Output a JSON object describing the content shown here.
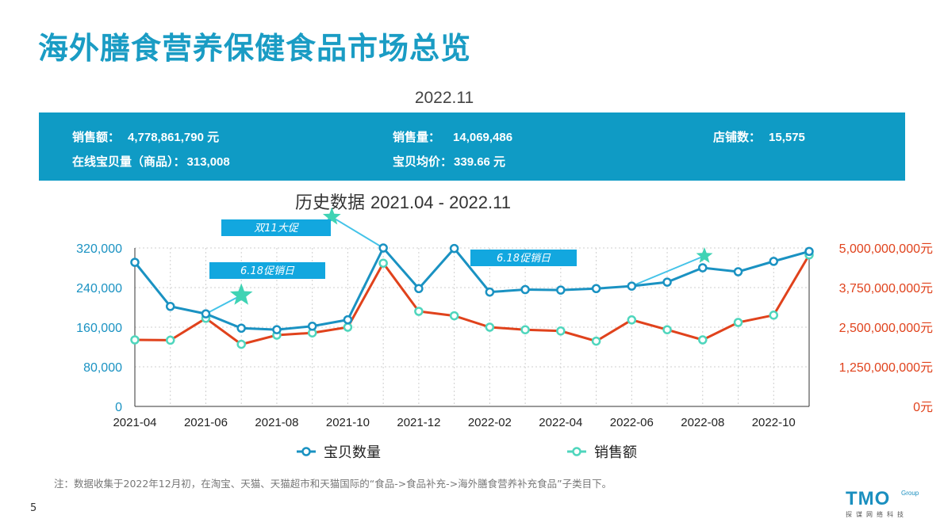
{
  "header": {
    "title": "海外膳食营养保健食品市场总览",
    "period": "2022.11"
  },
  "summary": {
    "sales_label": "销售额：",
    "sales_value": "4,778,861,790 元",
    "volume_label": "销售量：",
    "volume_value": "14,069,486",
    "stores_label": "店铺数：",
    "stores_value": "15,575",
    "items_label": "在线宝贝量（商品）：",
    "items_value": "313,008",
    "avg_label": "宝贝均价：",
    "avg_value": "339.66  元"
  },
  "history": {
    "label": "历史数据",
    "range": "2021.04 - 2022.11"
  },
  "colors": {
    "items_line": "#1a92c2",
    "sales_line": "#e0421c",
    "marker_sales": "#4fd6bd",
    "callout": "#12a7df",
    "star": "#3fd3b4"
  },
  "chart_data": {
    "type": "line",
    "x": [
      "2021-04",
      "2021-05",
      "2021-06",
      "2021-07",
      "2021-08",
      "2021-09",
      "2021-10",
      "2021-11",
      "2021-12",
      "2022-01",
      "2022-02",
      "2022-03",
      "2022-04",
      "2022-05",
      "2022-06",
      "2022-07",
      "2022-08",
      "2022-09",
      "2022-10",
      "2022-11"
    ],
    "tick_labels": [
      "2021-04",
      "2021-06",
      "2021-08",
      "2021-10",
      "2021-12",
      "2022-02",
      "2022-04",
      "2022-06",
      "2022-08",
      "2022-10"
    ],
    "y_left": {
      "min": 0,
      "max": 320000,
      "ticks": [
        "0",
        "80,000",
        "160,000",
        "240,000",
        "320,000"
      ]
    },
    "y_right": {
      "min": 0,
      "max": 5000000000,
      "ticks": [
        "0元",
        "1,250,000,000元",
        "2,500,000,000元",
        "3,750,000,000元",
        "5,000,000,000元"
      ]
    },
    "series": [
      {
        "name": "宝贝数量",
        "axis": "left",
        "values": [
          291000,
          202000,
          187000,
          158000,
          155000,
          162000,
          175000,
          320000,
          238000,
          319000,
          231000,
          236000,
          235000,
          238000,
          243000,
          251000,
          280000,
          272000,
          293000,
          313000
        ]
      },
      {
        "name": "销售额",
        "axis": "right",
        "values": [
          2100000000,
          2090000000,
          2780000000,
          1960000000,
          2250000000,
          2320000000,
          2500000000,
          4520000000,
          3000000000,
          2860000000,
          2500000000,
          2420000000,
          2380000000,
          2060000000,
          2730000000,
          2420000000,
          2100000000,
          2650000000,
          2880000000,
          4780000000
        ]
      }
    ],
    "annotations": [
      {
        "text": "双11大促",
        "index": 7,
        "star_y": 5980000000
      },
      {
        "text": "6.18促销日",
        "index": 2,
        "star_y": 3510000000
      },
      {
        "text": "6.18促销日",
        "index": 14,
        "star_y": 4750000000
      }
    ],
    "grid": true,
    "legend_position": "bottom"
  },
  "note": "注：数据收集于2022年12月初，在淘宝、天猫、天猫超市和天猫国际的“食品->食品补充->海外膳食营养补充食品”子类目下。",
  "page_number": "5",
  "logo": {
    "text": "TMO",
    "group": "Group",
    "tagline": "探谋网络科技"
  }
}
